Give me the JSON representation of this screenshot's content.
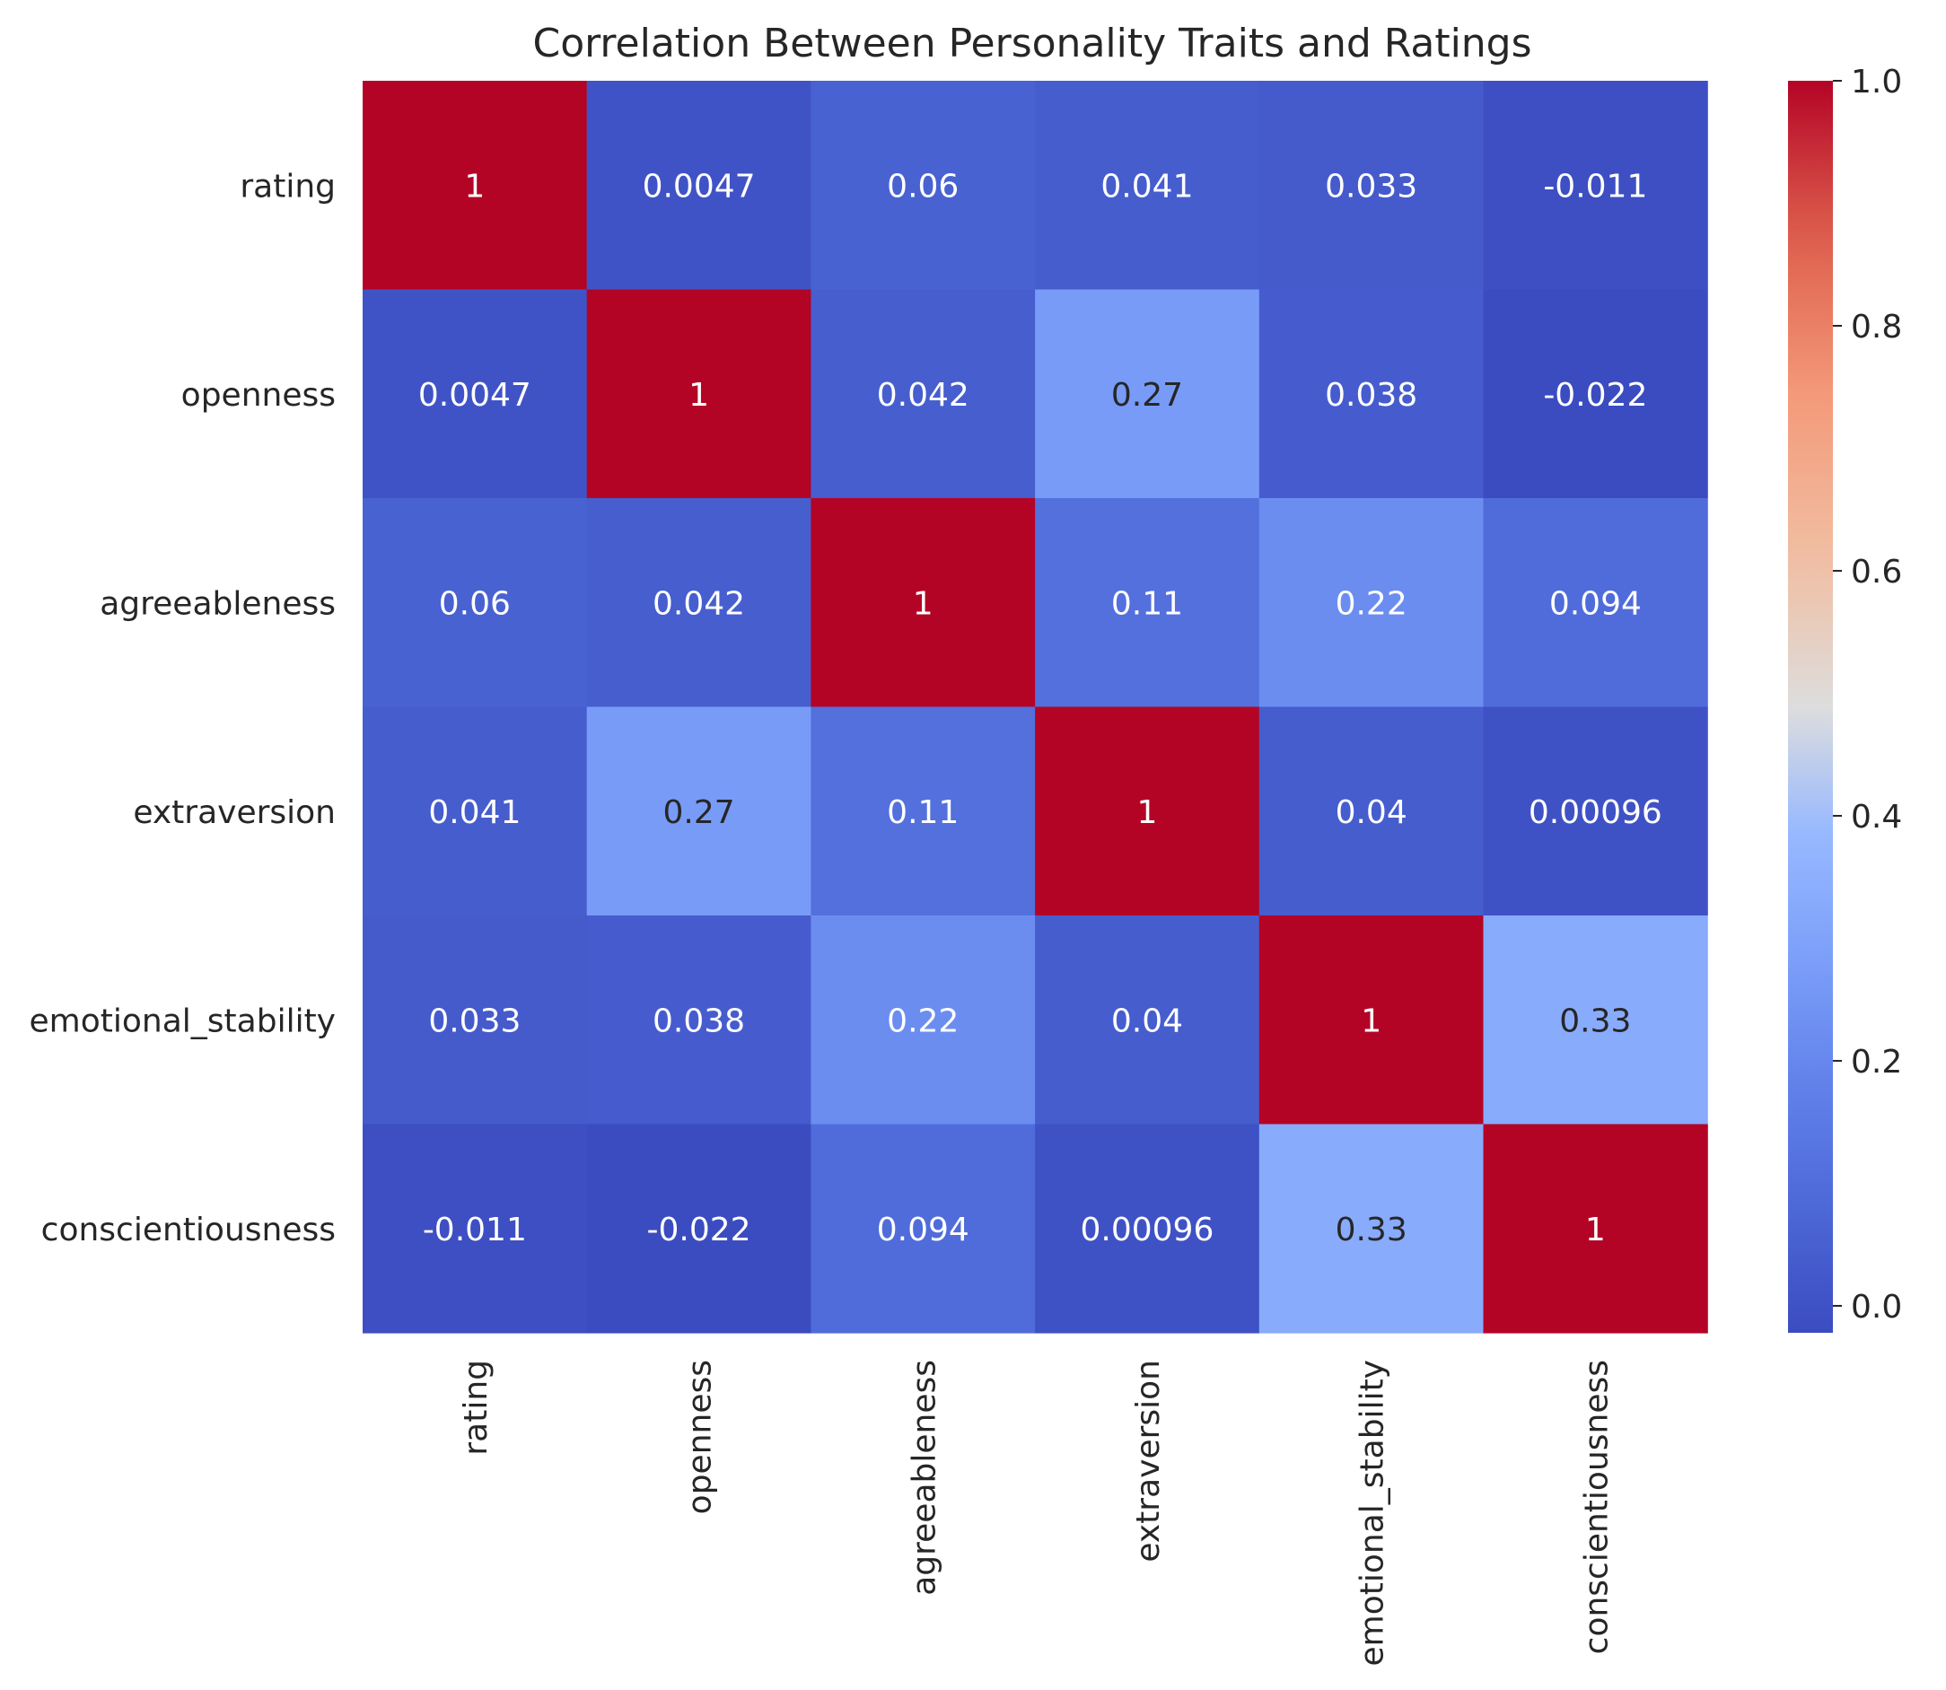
{
  "chart_data": {
    "type": "heatmap",
    "title": "Correlation Between Personality Traits and Ratings",
    "xlabel": "",
    "ylabel": "",
    "rows": [
      "rating",
      "openness",
      "agreeableness",
      "extraversion",
      "emotional_stability",
      "conscientiousness"
    ],
    "columns": [
      "rating",
      "openness",
      "agreeableness",
      "extraversion",
      "emotional_stability",
      "conscientiousness"
    ],
    "values": [
      [
        1,
        0.0047,
        0.06,
        0.041,
        0.033,
        -0.011
      ],
      [
        0.0047,
        1,
        0.042,
        0.27,
        0.038,
        -0.022
      ],
      [
        0.06,
        0.042,
        1,
        0.11,
        0.22,
        0.094
      ],
      [
        0.041,
        0.27,
        0.11,
        1,
        0.04,
        0.00096
      ],
      [
        0.033,
        0.038,
        0.22,
        0.04,
        1,
        0.33
      ],
      [
        -0.011,
        -0.022,
        0.094,
        0.00096,
        0.33,
        1
      ]
    ],
    "annotations": [
      [
        "1",
        "0.0047",
        "0.06",
        "0.041",
        "0.033",
        "-0.011"
      ],
      [
        "0.0047",
        "1",
        "0.042",
        "0.27",
        "0.038",
        "-0.022"
      ],
      [
        "0.06",
        "0.042",
        "1",
        "0.11",
        "0.22",
        "0.094"
      ],
      [
        "0.041",
        "0.27",
        "0.11",
        "1",
        "0.04",
        "0.00096"
      ],
      [
        "0.033",
        "0.038",
        "0.22",
        "0.04",
        "1",
        "0.33"
      ],
      [
        "-0.011",
        "-0.022",
        "0.094",
        "0.00096",
        "0.33",
        "1"
      ]
    ],
    "colormap": "coolwarm",
    "color_range": [
      -0.022,
      1.0
    ],
    "colorbar": {
      "ticks": [
        0.0,
        0.2,
        0.4,
        0.6,
        0.8,
        1.0
      ],
      "tick_labels": [
        "0.0",
        "0.2",
        "0.4",
        "0.6",
        "0.8",
        "1.0"
      ]
    },
    "grid": false,
    "legend": "colorbar-right",
    "colors": {
      "low": "#3b4cc0",
      "mid": "#dddddd",
      "high": "#b40426",
      "text_dark": "#262626",
      "text_light": "#ffffff"
    }
  }
}
